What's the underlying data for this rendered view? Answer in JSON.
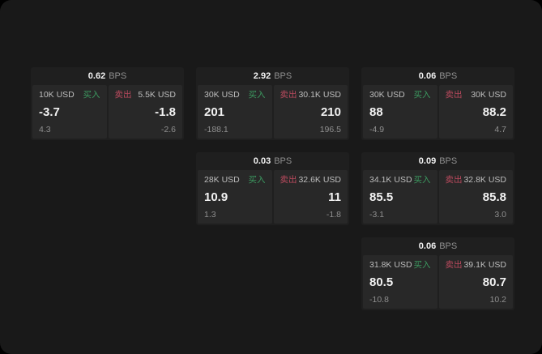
{
  "labels": {
    "bps_unit": "BPS",
    "buy": "买入",
    "sell": "卖出"
  },
  "colors": {
    "backdrop": "#000000",
    "surface": "#191919",
    "card_bg": "#1f1f1f",
    "panel_bg": "#282828",
    "buy_green": "#3c9960",
    "sell_red": "#bb4a5e",
    "text_primary": "#f2f2f2",
    "text_secondary": "#bdbdbd",
    "text_muted": "#8f8f8f"
  },
  "cards": [
    {
      "bps": "0.62",
      "buy": {
        "size": "10K USD",
        "price": "-3.7",
        "sub": "4.3"
      },
      "sell": {
        "size": "5.5K USD",
        "price": "-1.8",
        "sub": "-2.6"
      }
    },
    {
      "bps": "2.92",
      "buy": {
        "size": "30K USD",
        "price": "201",
        "sub": "-188.1"
      },
      "sell": {
        "size": "30.1K USD",
        "price": "210",
        "sub": "196.5"
      }
    },
    {
      "bps": "0.06",
      "buy": {
        "size": "30K USD",
        "price": "88",
        "sub": "-4.9"
      },
      "sell": {
        "size": "30K USD",
        "price": "88.2",
        "sub": "4.7"
      }
    },
    {
      "bps": "0.03",
      "buy": {
        "size": "28K USD",
        "price": "10.9",
        "sub": "1.3"
      },
      "sell": {
        "size": "32.6K USD",
        "price": "11",
        "sub": "-1.8"
      }
    },
    {
      "bps": "0.09",
      "buy": {
        "size": "34.1K USD",
        "price": "85.5",
        "sub": "-3.1"
      },
      "sell": {
        "size": "32.8K USD",
        "price": "85.8",
        "sub": "3.0"
      }
    },
    {
      "bps": "0.06",
      "buy": {
        "size": "31.8K USD",
        "price": "80.5",
        "sub": "-10.8"
      },
      "sell": {
        "size": "39.1K USD",
        "price": "80.7",
        "sub": "10.2"
      }
    }
  ]
}
